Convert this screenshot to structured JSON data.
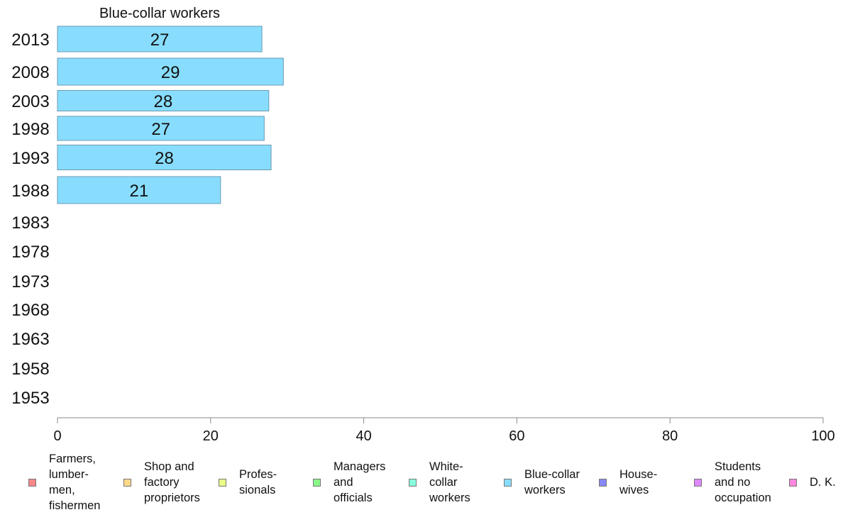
{
  "chart_data": {
    "type": "bar",
    "orientation": "horizontal",
    "title": "Blue-collar workers",
    "categories": [
      "2013",
      "2008",
      "2003",
      "1998",
      "1993",
      "1988",
      "1983",
      "1978",
      "1973",
      "1968",
      "1963",
      "1958",
      "1953"
    ],
    "series": [
      {
        "name": "Blue-collar workers",
        "values": [
          26.7,
          29.5,
          27.6,
          27.0,
          27.9,
          21.3,
          null,
          null,
          null,
          null,
          null,
          null,
          null
        ],
        "data_labels": [
          "27",
          "29",
          "28",
          "27",
          "28",
          "21",
          "",
          "",
          "",
          "",
          "",
          "",
          ""
        ],
        "color": "#88ddff"
      }
    ],
    "xlim": [
      0,
      100
    ],
    "xticks": [
      "0",
      "20",
      "40",
      "60",
      "80",
      "100"
    ],
    "grid": false,
    "legend_position": "bottom"
  },
  "legend": [
    {
      "label": "Farmers,\nlumber-\nmen,\nfishermen",
      "color": "#f88888"
    },
    {
      "label": "Shop and\nfactory\nproprietors",
      "color": "#ffd888"
    },
    {
      "label": "Profes-\nsionals",
      "color": "#e8ff88"
    },
    {
      "label": "Managers\nand\nofficials",
      "color": "#88f888"
    },
    {
      "label": "White-\ncollar\nworkers",
      "color": "#88ffdd"
    },
    {
      "label": "Blue-collar\nworkers",
      "color": "#88ddff"
    },
    {
      "label": "House-\nwives",
      "color": "#8888f8"
    },
    {
      "label": "Students\nand no\noccupation",
      "color": "#dd88ff"
    },
    {
      "label": "D. K.",
      "color": "#ff88dd"
    }
  ]
}
